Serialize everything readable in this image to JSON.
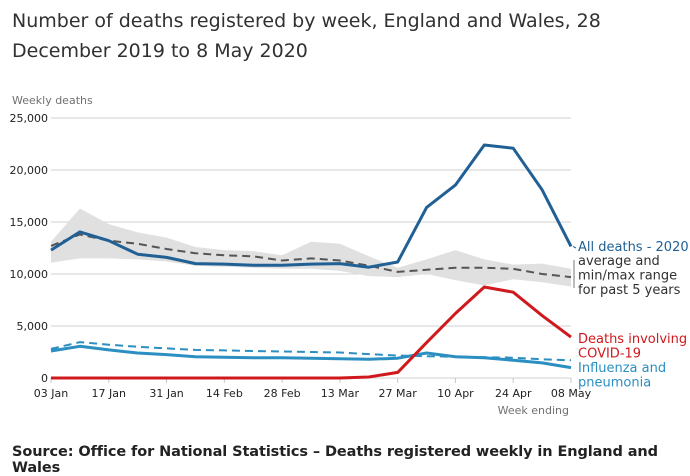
{
  "title": "Number of deaths registered by week, England and Wales, 28 December 2019 to 8 May 2020",
  "source": "Source: Office for National Statistics – Deaths registered weekly in England and Wales",
  "colors": {
    "all_deaths": "#206095",
    "average": "#555555",
    "range": "#e0e0e0",
    "covid": "#d0191d",
    "influenza": "#2b8fc2",
    "gridline": "#d0d0d0"
  },
  "chart_data": {
    "type": "line",
    "title": "Number of deaths registered by week, England and Wales, 28 December 2019 to 8 May 2020",
    "ylabel": "Weekly deaths",
    "xlabel": "Week ending",
    "ylim": [
      0,
      25000
    ],
    "yticks": [
      0,
      5000,
      10000,
      15000,
      20000,
      25000
    ],
    "ytick_labels": [
      "0",
      "5,000",
      "10,000",
      "15,000",
      "20,000",
      "25,000"
    ],
    "grid": true,
    "x": [
      "03 Jan",
      "10 Jan",
      "17 Jan",
      "24 Jan",
      "31 Jan",
      "07 Feb",
      "14 Feb",
      "21 Feb",
      "28 Feb",
      "06 Mar",
      "13 Mar",
      "20 Mar",
      "27 Mar",
      "03 Apr",
      "10 Apr",
      "17 Apr",
      "24 Apr",
      "01 May",
      "08 May"
    ],
    "xtick_labels": [
      "03 Jan",
      "17 Jan",
      "31 Jan",
      "14 Feb",
      "28 Feb",
      "13 Mar",
      "27 Mar",
      "10 Apr",
      "24 Apr",
      "08 May"
    ],
    "legend_placement": "right (direct labels)",
    "series": [
      {
        "name": "All deaths - 2020",
        "style": "solid",
        "values": [
          12300,
          14050,
          13200,
          11900,
          11600,
          11000,
          10950,
          10850,
          10850,
          10950,
          11000,
          10650,
          11150,
          16400,
          18550,
          22400,
          22100,
          18100,
          12650
        ]
      },
      {
        "name": "All deaths - average for past 5 years",
        "style": "dashed",
        "values": [
          12700,
          13800,
          13200,
          12900,
          12400,
          12000,
          11800,
          11700,
          11300,
          11500,
          11300,
          10800,
          10200,
          10400,
          10600,
          10600,
          10500,
          10000,
          9700
        ]
      },
      {
        "name": "All deaths - min past 5 years",
        "style": "band-low",
        "values": [
          11100,
          11500,
          11500,
          11400,
          11200,
          10800,
          10700,
          10600,
          10500,
          10500,
          10300,
          9800,
          9700,
          10000,
          9400,
          8900,
          9500,
          9200,
          8800
        ]
      },
      {
        "name": "All deaths - max past 5 years",
        "style": "band-high",
        "values": [
          13100,
          16300,
          14800,
          14000,
          13500,
          12600,
          12300,
          12200,
          11800,
          13100,
          12900,
          11700,
          10600,
          11400,
          12300,
          11400,
          10900,
          11000,
          10500
        ]
      },
      {
        "name": "Deaths involving COVID-19",
        "style": "solid",
        "values": [
          0,
          0,
          0,
          0,
          0,
          0,
          0,
          0,
          0,
          0,
          0,
          100,
          540,
          3400,
          6200,
          8750,
          8250,
          6000,
          3930
        ]
      },
      {
        "name": "Influenza and pneumonia - 2020",
        "style": "solid",
        "values": [
          2600,
          3050,
          2700,
          2400,
          2250,
          2050,
          2000,
          1950,
          1950,
          1900,
          1850,
          1800,
          1900,
          2400,
          2050,
          1950,
          1700,
          1450,
          1000
        ]
      },
      {
        "name": "Influenza and pneumonia - average past 5 years",
        "style": "dashed",
        "values": [
          2800,
          3450,
          3200,
          3000,
          2850,
          2700,
          2650,
          2600,
          2550,
          2500,
          2450,
          2300,
          2150,
          2100,
          2050,
          2000,
          1950,
          1800,
          1700
        ]
      }
    ],
    "annotations": [
      {
        "text": "All deaths - 2020",
        "series": "All deaths - 2020"
      },
      {
        "text": "average and min/max range for past 5 years",
        "lines": [
          "average and",
          "min/max range",
          "for past 5 years"
        ]
      },
      {
        "text": "Deaths involving COVID-19",
        "lines": [
          "Deaths involving",
          "COVID-19"
        ]
      },
      {
        "text": "Influenza and pneumonia",
        "lines": [
          "Influenza and",
          "pneumonia"
        ]
      }
    ]
  }
}
